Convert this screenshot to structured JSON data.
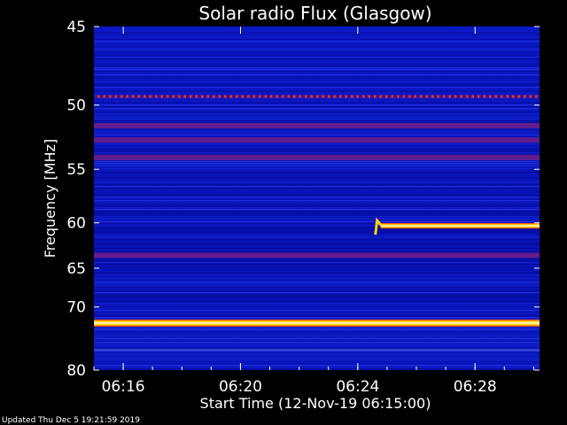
{
  "chart_data": {
    "type": "heatmap",
    "title": "Solar radio Flux (Glasgow)",
    "xlabel": "Start Time (12-Nov-19 06:15:00)",
    "ylabel": "Frequency [MHz]",
    "x_tick_labels": [
      "06:16",
      "06:20",
      "06:24",
      "06:28"
    ],
    "x_tick_minutes": [
      16,
      20,
      24,
      28
    ],
    "xlim_minutes": [
      15.0,
      30.2
    ],
    "y_tick_labels": [
      "45",
      "50",
      "55",
      "60",
      "65",
      "70",
      "80"
    ],
    "y_tick_values": [
      45,
      50,
      55,
      60,
      65,
      70,
      80
    ],
    "ylim": [
      45,
      80
    ],
    "y_scale": "reciprocal",
    "colormap": [
      "#0000a0",
      "#1a2bd8",
      "#7a1a7a",
      "#ff2020",
      "#ffd000",
      "#ffffff"
    ],
    "background_color": "#0a14b8",
    "features": [
      {
        "kind": "horizontal-band",
        "frequency_mhz": 49.4,
        "intensity": "red-dots"
      },
      {
        "kind": "horizontal-band",
        "frequency_mhz": 51.5,
        "intensity": "magenta"
      },
      {
        "kind": "horizontal-band",
        "frequency_mhz": 52.6,
        "intensity": "magenta"
      },
      {
        "kind": "horizontal-band",
        "frequency_mhz": 54.0,
        "intensity": "magenta"
      },
      {
        "kind": "horizontal-band",
        "frequency_mhz": 63.5,
        "intensity": "magenta"
      },
      {
        "kind": "horizontal-band",
        "frequency_mhz": 72.3,
        "intensity": "saturated"
      },
      {
        "kind": "horizontal-band",
        "frequency_mhz": 76.5,
        "intensity": "faint"
      },
      {
        "kind": "signal-trace",
        "start_minute": 24.6,
        "end_minute": 30.2,
        "frequency_mhz": 60.3,
        "intensity": "saturated"
      }
    ]
  },
  "footer": "Updated Thu Dec  5 19:21:59 2019"
}
